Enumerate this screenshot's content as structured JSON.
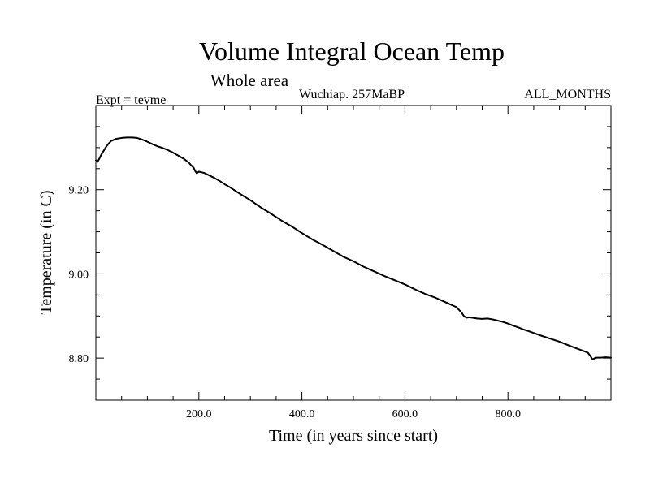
{
  "chart_data": {
    "type": "line",
    "title": "Volume Integral Ocean Temp",
    "subtitle": "Whole area",
    "experiment_label": "Expt = tevme",
    "period_label": "Wuchiap. 257MaBP",
    "months_label": "ALL_MONTHS",
    "xlabel": "Time (in years since start)",
    "ylabel": "Temperature (in C)",
    "xlim": [
      0,
      1000
    ],
    "ylim": [
      8.7,
      9.4
    ],
    "x_ticks": [
      200,
      400,
      600,
      800
    ],
    "x_tick_labels": [
      "200.0",
      "400.0",
      "600.0",
      "800.0"
    ],
    "y_ticks": [
      8.8,
      9.0,
      9.2
    ],
    "y_tick_labels": [
      "8.80",
      "9.00",
      "9.20"
    ],
    "x_minor_step": 50,
    "y_minor_step": 0.05,
    "grid": false,
    "legend": "none",
    "line_color": "#000000",
    "series": [
      {
        "name": "Volume Integral Ocean Temp",
        "x": [
          0,
          3,
          6,
          10,
          15,
          20,
          25,
          30,
          40,
          50,
          60,
          70,
          80,
          90,
          100,
          110,
          120,
          130,
          140,
          150,
          160,
          170,
          180,
          185,
          190,
          193,
          196,
          200,
          210,
          220,
          230,
          240,
          250,
          260,
          280,
          300,
          320,
          340,
          360,
          380,
          400,
          420,
          440,
          460,
          480,
          500,
          520,
          540,
          560,
          580,
          600,
          620,
          640,
          660,
          680,
          700,
          710,
          715,
          720,
          725,
          730,
          740,
          750,
          760,
          770,
          780,
          790,
          800,
          810,
          820,
          830,
          840,
          860,
          880,
          900,
          920,
          940,
          955,
          960,
          963,
          965,
          970,
          980,
          990,
          1000
        ],
        "y": [
          9.27,
          9.266,
          9.272,
          9.282,
          9.292,
          9.302,
          9.31,
          9.316,
          9.321,
          9.323,
          9.324,
          9.324,
          9.323,
          9.319,
          9.314,
          9.308,
          9.303,
          9.299,
          9.294,
          9.288,
          9.281,
          9.274,
          9.265,
          9.258,
          9.252,
          9.244,
          9.239,
          9.243,
          9.24,
          9.234,
          9.228,
          9.221,
          9.213,
          9.206,
          9.19,
          9.175,
          9.158,
          9.143,
          9.127,
          9.113,
          9.097,
          9.082,
          9.069,
          9.055,
          9.041,
          9.03,
          9.017,
          9.006,
          8.995,
          8.985,
          8.975,
          8.963,
          8.952,
          8.943,
          8.932,
          8.921,
          8.908,
          8.899,
          8.896,
          8.897,
          8.896,
          8.894,
          8.893,
          8.894,
          8.892,
          8.889,
          8.886,
          8.882,
          8.877,
          8.873,
          8.868,
          8.864,
          8.855,
          8.847,
          8.839,
          8.829,
          8.82,
          8.813,
          8.805,
          8.799,
          8.797,
          8.801,
          8.801,
          8.802,
          8.801
        ]
      }
    ]
  }
}
